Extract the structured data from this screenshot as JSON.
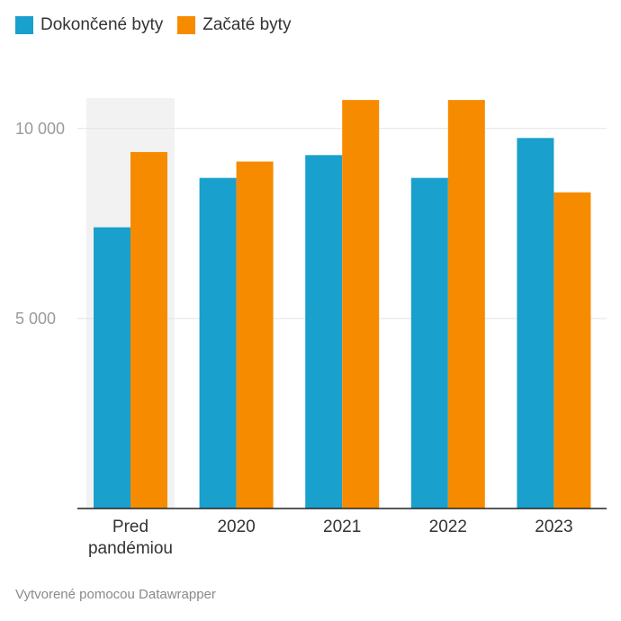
{
  "chart_data": {
    "type": "bar",
    "categories": [
      "Pred\npandémiou",
      "2020",
      "2021",
      "2022",
      "2023"
    ],
    "series": [
      {
        "name": "Dokončené byty",
        "color": "#1aa0cc",
        "values": [
          7400,
          8700,
          9300,
          8700,
          9750
        ]
      },
      {
        "name": "Začaté byty",
        "color": "#f68b00",
        "values": [
          9380,
          9130,
          10750,
          10750,
          8320
        ]
      }
    ],
    "yticks": [
      5000,
      10000
    ],
    "ytick_labels": [
      "5 000",
      "10 000"
    ],
    "ylim": [
      0,
      10800
    ],
    "grid": true,
    "highlighted_category": "Pred\npandémiou",
    "legend_position": "top-left",
    "title": "",
    "xlabel": "",
    "ylabel": ""
  },
  "footer": {
    "credit": "Vytvorené pomocou Datawrapper"
  }
}
